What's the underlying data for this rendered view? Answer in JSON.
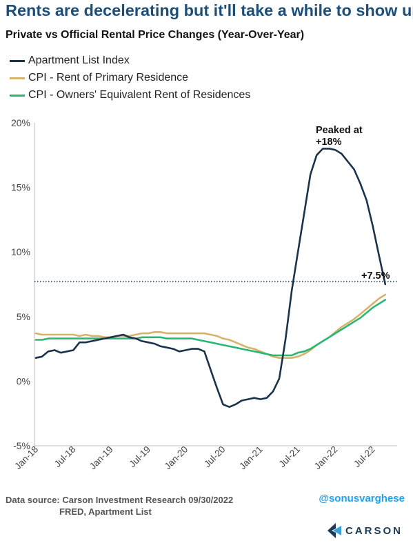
{
  "title": "Rents are decelerating but it'll take a while to show up",
  "subtitle": "Private vs Official Rental Price Changes (Year-Over-Year)",
  "colors": {
    "apartment_list": "#1b324b",
    "cpi_rent": "#d6b26a",
    "cpi_oer": "#2bb673",
    "reference_line": "#1b324b",
    "title": "#1b4f7a",
    "handle": "#1da1f2"
  },
  "annotations": {
    "peak": [
      "Peaked at",
      "+18%"
    ],
    "latest": "+7.5%"
  },
  "footer": {
    "source_line1": "Data source: Carson Investment Research   09/30/2022",
    "source_line2": "FRED, Apartment List",
    "handle": "@sonusvarghese",
    "brand": "CARSON"
  },
  "chart_data": {
    "type": "line",
    "x_ticks": [
      "Jan-18",
      "Jul-18",
      "Jan-19",
      "Jul-19",
      "Jan-20",
      "Jul-20",
      "Jan-21",
      "Jul-21",
      "Jan-22",
      "Jul-22"
    ],
    "y_ticks": [
      "20%",
      "15%",
      "10%",
      "5%",
      "0%",
      "-5%"
    ],
    "ylim": [
      -5,
      20
    ],
    "x_start": "2018-01",
    "reference_line": {
      "value": 7.7,
      "style": "dotted"
    },
    "series": [
      {
        "name": "Apartment List Index",
        "values": [
          1.8,
          1.9,
          2.3,
          2.4,
          2.2,
          2.3,
          2.4,
          3.0,
          3.0,
          3.1,
          3.2,
          3.3,
          3.4,
          3.5,
          3.6,
          3.4,
          3.3,
          3.1,
          3.0,
          2.9,
          2.7,
          2.6,
          2.5,
          2.3,
          2.4,
          2.5,
          2.5,
          2.3,
          0.9,
          -0.5,
          -1.8,
          -2.0,
          -1.8,
          -1.5,
          -1.4,
          -1.3,
          -1.4,
          -1.3,
          -0.8,
          0.2,
          3.2,
          7.0,
          10.0,
          13.0,
          16.0,
          17.5,
          18.0,
          18.0,
          17.9,
          17.6,
          17.0,
          16.4,
          15.3,
          14.0,
          12.0,
          9.7,
          7.5
        ]
      },
      {
        "name": "CPI - Rent of Primary Residence",
        "values": [
          3.7,
          3.6,
          3.6,
          3.6,
          3.6,
          3.6,
          3.6,
          3.5,
          3.6,
          3.5,
          3.5,
          3.4,
          3.4,
          3.5,
          3.5,
          3.5,
          3.6,
          3.7,
          3.7,
          3.8,
          3.8,
          3.7,
          3.7,
          3.7,
          3.7,
          3.7,
          3.7,
          3.7,
          3.6,
          3.5,
          3.3,
          3.2,
          3.0,
          2.8,
          2.6,
          2.5,
          2.3,
          2.1,
          1.9,
          1.8,
          1.8,
          1.8,
          1.9,
          2.1,
          2.4,
          2.8,
          3.1,
          3.4,
          3.8,
          4.2,
          4.5,
          4.8,
          5.2,
          5.6,
          6.0,
          6.4,
          6.7
        ]
      },
      {
        "name": "CPI - Owners' Equivalent Rent of Residences",
        "values": [
          3.2,
          3.2,
          3.3,
          3.3,
          3.3,
          3.3,
          3.3,
          3.3,
          3.3,
          3.3,
          3.3,
          3.3,
          3.3,
          3.3,
          3.3,
          3.3,
          3.3,
          3.4,
          3.4,
          3.4,
          3.4,
          3.3,
          3.3,
          3.3,
          3.3,
          3.3,
          3.2,
          3.1,
          3.0,
          2.9,
          2.8,
          2.7,
          2.6,
          2.5,
          2.4,
          2.3,
          2.2,
          2.1,
          2.0,
          2.0,
          2.0,
          2.0,
          2.2,
          2.3,
          2.5,
          2.8,
          3.1,
          3.4,
          3.7,
          4.0,
          4.3,
          4.6,
          4.9,
          5.3,
          5.7,
          6.0,
          6.3
        ]
      }
    ]
  }
}
